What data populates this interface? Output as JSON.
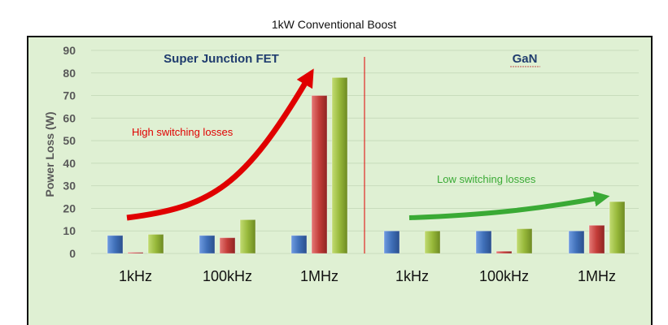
{
  "chart_data": {
    "type": "bar",
    "title": "1kW Conventional Boost",
    "ylabel": "Power Loss (W)",
    "ylim": [
      0,
      90
    ],
    "yticks": [
      0,
      10,
      20,
      30,
      40,
      50,
      60,
      70,
      80,
      90
    ],
    "sections": [
      {
        "name": "Super Junction FET",
        "annotation": "High switching losses",
        "arrow_color": "#e00000",
        "categories": [
          "1kHz",
          "100kHz",
          "1MHz"
        ],
        "groups": [
          [
            8,
            0.5,
            8.5
          ],
          [
            8,
            7,
            15
          ],
          [
            8,
            70,
            78
          ]
        ]
      },
      {
        "name": "GaN",
        "annotation": "Low switching losses",
        "arrow_color": "#3aaa35",
        "categories": [
          "1kHz",
          "100kHz",
          "1MHz"
        ],
        "groups": [
          [
            10,
            0,
            10
          ],
          [
            10,
            1,
            11
          ],
          [
            10,
            12.5,
            23
          ]
        ]
      }
    ],
    "bar_colors": [
      "#4a7ec6",
      "#c9423f",
      "#9bbb3c"
    ],
    "grid": true
  }
}
